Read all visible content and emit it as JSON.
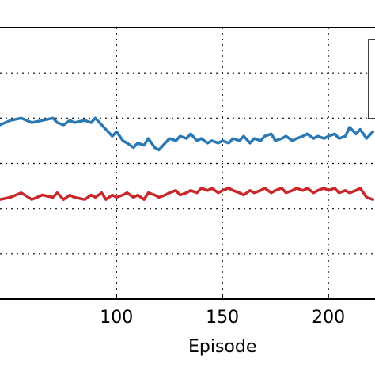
{
  "chart_data": {
    "type": "line",
    "xlabel": "Episode",
    "ylabel": "",
    "xlim": [
      45,
      222
    ],
    "ylim": [
      0,
      6
    ],
    "x_ticks": [
      100,
      150,
      200
    ],
    "y_gridlines": [
      1,
      2,
      3,
      4,
      5
    ],
    "grid": true,
    "legend_position": "right (partially visible box, entries not visible)",
    "series": [
      {
        "color": "#2a78b4",
        "x": [
          45,
          50,
          55,
          60,
          65,
          70,
          72,
          75,
          78,
          80,
          85,
          88,
          90,
          93,
          95,
          98,
          100,
          103,
          105,
          108,
          110,
          113,
          115,
          118,
          120,
          123,
          125,
          128,
          130,
          133,
          135,
          138,
          140,
          143,
          145,
          148,
          150,
          153,
          155,
          158,
          160,
          163,
          165,
          168,
          170,
          173,
          175,
          178,
          180,
          183,
          185,
          188,
          190,
          193,
          195,
          198,
          200,
          203,
          205,
          208,
          210,
          213,
          215,
          218,
          221
        ],
        "values": [
          3.85,
          3.95,
          4.0,
          3.9,
          3.95,
          4.0,
          3.9,
          3.85,
          3.95,
          3.9,
          3.95,
          3.9,
          4.0,
          3.85,
          3.75,
          3.6,
          3.7,
          3.5,
          3.45,
          3.35,
          3.45,
          3.4,
          3.55,
          3.35,
          3.3,
          3.45,
          3.55,
          3.5,
          3.6,
          3.55,
          3.65,
          3.5,
          3.55,
          3.45,
          3.5,
          3.45,
          3.5,
          3.45,
          3.55,
          3.5,
          3.6,
          3.45,
          3.55,
          3.5,
          3.6,
          3.65,
          3.5,
          3.55,
          3.6,
          3.5,
          3.55,
          3.6,
          3.65,
          3.55,
          3.6,
          3.55,
          3.6,
          3.65,
          3.55,
          3.6,
          3.8,
          3.65,
          3.75,
          3.55,
          3.7
        ]
      },
      {
        "color": "#c8282a",
        "x": [
          45,
          50,
          55,
          60,
          65,
          70,
          72,
          75,
          78,
          80,
          85,
          88,
          90,
          93,
          95,
          98,
          100,
          103,
          105,
          108,
          110,
          113,
          115,
          118,
          120,
          123,
          125,
          128,
          130,
          133,
          135,
          138,
          140,
          143,
          145,
          148,
          150,
          153,
          155,
          158,
          160,
          163,
          165,
          168,
          170,
          173,
          175,
          178,
          180,
          183,
          185,
          188,
          190,
          193,
          195,
          198,
          200,
          203,
          205,
          208,
          210,
          213,
          215,
          218,
          221
        ],
        "values": [
          2.2,
          2.25,
          2.35,
          2.2,
          2.3,
          2.25,
          2.35,
          2.2,
          2.3,
          2.25,
          2.2,
          2.3,
          2.25,
          2.35,
          2.2,
          2.3,
          2.25,
          2.3,
          2.35,
          2.25,
          2.3,
          2.2,
          2.35,
          2.3,
          2.25,
          2.3,
          2.35,
          2.4,
          2.3,
          2.35,
          2.4,
          2.35,
          2.45,
          2.4,
          2.45,
          2.35,
          2.4,
          2.45,
          2.4,
          2.35,
          2.3,
          2.4,
          2.35,
          2.4,
          2.45,
          2.35,
          2.4,
          2.45,
          2.35,
          2.4,
          2.45,
          2.4,
          2.45,
          2.35,
          2.4,
          2.45,
          2.4,
          2.45,
          2.35,
          2.4,
          2.35,
          2.4,
          2.45,
          2.25,
          2.2
        ]
      }
    ]
  }
}
